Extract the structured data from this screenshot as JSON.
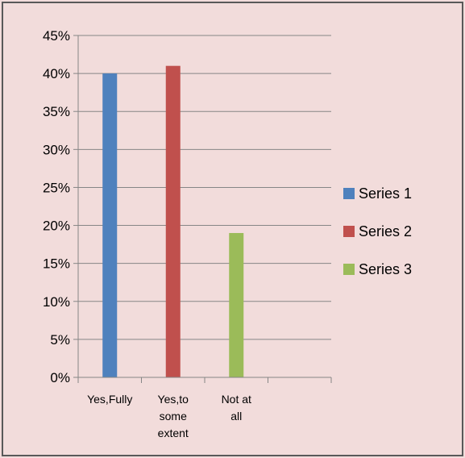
{
  "chart_data": {
    "type": "bar",
    "categories": [
      [
        "Yes,Fully"
      ],
      [
        "Yes,to",
        "some",
        "extent"
      ],
      [
        "Not at",
        "all"
      ],
      [
        ""
      ]
    ],
    "series": [
      {
        "name": "Series 1",
        "color": "#4f81bd",
        "values": [
          40,
          0,
          0,
          0
        ]
      },
      {
        "name": "Series 2",
        "color": "#c0504d",
        "values": [
          0,
          41,
          0,
          0
        ]
      },
      {
        "name": "Series 3",
        "color": "#9bbb59",
        "values": [
          0,
          0,
          19,
          0
        ]
      }
    ],
    "ylim": [
      0,
      45
    ],
    "y_ticks": [
      "0%",
      "5%",
      "10%",
      "15%",
      "20%",
      "25%",
      "30%",
      "35%",
      "40%",
      "45%"
    ],
    "y_tick_values": [
      0,
      5,
      10,
      15,
      20,
      25,
      30,
      35,
      40,
      45
    ],
    "grid": true,
    "legend_position": "right",
    "background": "#f2dcdb"
  }
}
